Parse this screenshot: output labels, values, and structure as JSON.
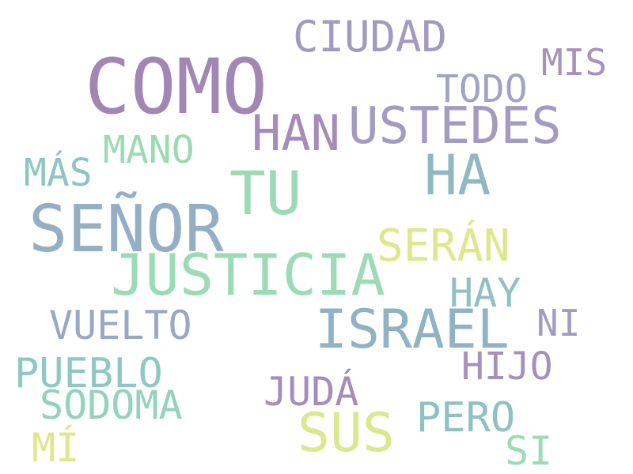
{
  "words": [
    {
      "text": "COMO",
      "color": "#a287b4"
    },
    {
      "text": "CIUDAD",
      "color": "#a39ac0"
    },
    {
      "text": "MIS",
      "color": "#a693bc"
    },
    {
      "text": "TODO",
      "color": "#a3a3c6"
    },
    {
      "text": "HAN",
      "color": "#a78bb8"
    },
    {
      "text": "USTEDES",
      "color": "#a39bc2"
    },
    {
      "text": "MANO",
      "color": "#9bdbb4"
    },
    {
      "text": "MÁS",
      "color": "#8ec5c2"
    },
    {
      "text": "TU",
      "color": "#9bdbb4"
    },
    {
      "text": "HA",
      "color": "#8fb8c1"
    },
    {
      "text": "SEÑOR",
      "color": "#94aec4"
    },
    {
      "text": "SERÁN",
      "color": "#dde88c"
    },
    {
      "text": "JUSTICIA",
      "color": "#9ddbb6"
    },
    {
      "text": "HAY",
      "color": "#90c0c2"
    },
    {
      "text": "VUELTO",
      "color": "#97a9c5"
    },
    {
      "text": "ISRAEL",
      "color": "#8fb3c2"
    },
    {
      "text": "NI",
      "color": "#a39bc2"
    },
    {
      "text": "HIJO",
      "color": "#a591bb"
    },
    {
      "text": "PUEBLO",
      "color": "#8ec9c1"
    },
    {
      "text": "JUDÁ",
      "color": "#a48dbb"
    },
    {
      "text": "SODOMA",
      "color": "#93d2bb"
    },
    {
      "text": "SUS",
      "color": "#dbe88e"
    },
    {
      "text": "PERO",
      "color": "#90c1c2"
    },
    {
      "text": "MÍ",
      "color": "#dde88c"
    },
    {
      "text": "SI",
      "color": "#9ddbb6"
    }
  ]
}
